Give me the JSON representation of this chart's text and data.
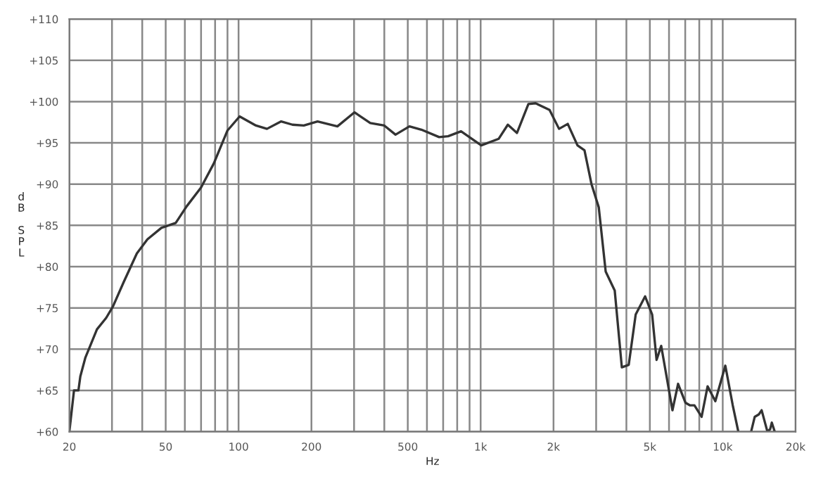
{
  "chart_data": {
    "type": "line",
    "xlabel": "Hz",
    "ylabel": "dB SPL",
    "x": [
      20,
      20.9,
      21.8,
      22.2,
      23.3,
      24.3,
      26.0,
      28.4,
      30.3,
      33.5,
      38,
      42,
      48,
      55,
      61,
      70,
      79,
      90,
      101,
      118,
      131,
      150,
      167,
      186,
      212,
      256,
      301,
      350,
      400,
      445,
      508,
      569,
      674,
      734,
      830,
      1006,
      1188,
      1295,
      1413,
      1575,
      1686,
      1926,
      2108,
      2290,
      2512,
      2685,
      2870,
      3075,
      3285,
      3580,
      3830,
      4090,
      4370,
      4780,
      5110,
      5330,
      5570,
      6200,
      6540,
      7020,
      7310,
      7640,
      8180,
      8660,
      9320,
      10250,
      11000,
      11600,
      12300,
      13100,
      13560,
      14100,
      14480,
      15300,
      15700,
      15950,
      16150,
      16400
    ],
    "series": [
      {
        "color": "#333333",
        "values": [
          60,
          65,
          65,
          66.7,
          69,
          70.3,
          72.4,
          73.8,
          75.2,
          78.1,
          81.6,
          83.3,
          84.7,
          85.3,
          87.3,
          89.6,
          92.5,
          96.5,
          98.2,
          97.1,
          96.7,
          97.6,
          97.2,
          97.1,
          97.6,
          97.0,
          98.7,
          97.4,
          97.1,
          96.0,
          97.0,
          96.6,
          95.7,
          95.8,
          96.4,
          94.7,
          95.5,
          97.2,
          96.2,
          99.7,
          99.8,
          99.0,
          96.7,
          97.3,
          94.7,
          94.1,
          90.0,
          87.2,
          79.4,
          77.1,
          67.8,
          68.1,
          74.2,
          76.4,
          74.2,
          68.7,
          70.4,
          62.6,
          65.8,
          63.5,
          63.2,
          63.2,
          61.8,
          65.5,
          63.7,
          68.0,
          63.2,
          60,
          null,
          60,
          61.8,
          62.1,
          62.6,
          60,
          60.3,
          61.1,
          60.6,
          60
        ]
      }
    ],
    "xlim": [
      20,
      20000
    ],
    "xticks": [
      20,
      {
        "value": 30,
        "label": null
      },
      {
        "value": 40,
        "label": null
      },
      50,
      {
        "value": 60,
        "label": null
      },
      {
        "value": 70,
        "label": null
      },
      {
        "value": 80,
        "label": null
      },
      {
        "value": 90,
        "label": null
      },
      100,
      200,
      {
        "value": 300,
        "label": null
      },
      {
        "value": 400,
        "label": null
      },
      500,
      {
        "value": 600,
        "label": null
      },
      {
        "value": 700,
        "label": null
      },
      {
        "value": 800,
        "label": null
      },
      {
        "value": 900,
        "label": null
      },
      {
        "value": 1000,
        "label": "1k"
      },
      {
        "value": 2000,
        "label": "2k"
      },
      {
        "value": 3000,
        "label": null
      },
      {
        "value": 4000,
        "label": null
      },
      {
        "value": 5000,
        "label": "5k"
      },
      {
        "value": 6000,
        "label": null
      },
      {
        "value": 7000,
        "label": null
      },
      {
        "value": 8000,
        "label": null
      },
      {
        "value": 9000,
        "label": null
      },
      {
        "value": 10000,
        "label": "10k"
      },
      {
        "value": 20000,
        "label": "20k"
      }
    ],
    "ylim": [
      60,
      110
    ],
    "yticks": [
      {
        "value": 60,
        "label": "+60"
      },
      {
        "value": 65,
        "label": "+65"
      },
      {
        "value": 70,
        "label": "+70"
      },
      {
        "value": 75,
        "label": "+75"
      },
      {
        "value": 80,
        "label": "+80"
      },
      {
        "value": 85,
        "label": "+85"
      },
      {
        "value": 90,
        "label": "+90"
      },
      {
        "value": 95,
        "label": "+95"
      },
      {
        "value": 100,
        "label": "+100"
      },
      {
        "value": 105,
        "label": "+105"
      },
      {
        "value": 110,
        "label": "+110"
      }
    ],
    "log": "x",
    "grid": true,
    "legend": false,
    "marker": "none",
    "line_style": "solid"
  }
}
